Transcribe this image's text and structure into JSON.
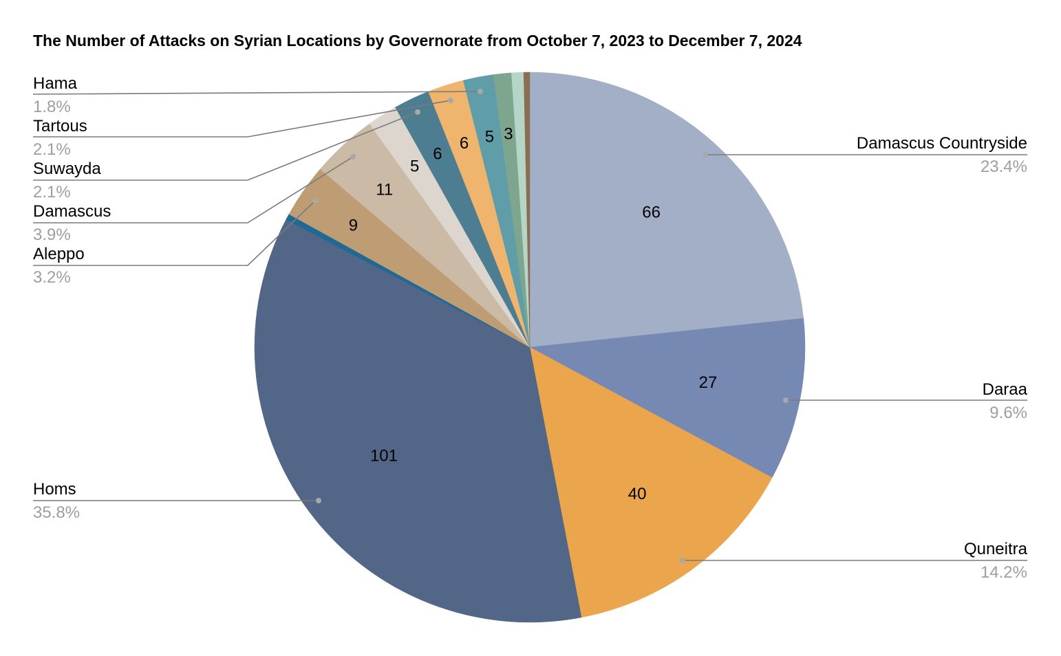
{
  "title": "The Number of Attacks on Syrian Locations by Governorate from October 7, 2023 to December 7, 2024",
  "chart_data": {
    "type": "pie",
    "title": "The Number of Attacks on Syrian Locations by Governorate from October 7, 2023 to December 7, 2024",
    "start_angle_deg": 0,
    "direction": "clockwise",
    "slices": [
      {
        "label": "Damascus Countryside",
        "value": 66,
        "percent": "23.4%",
        "color": "#a3afc7",
        "legend_side": "right",
        "show_value": "66"
      },
      {
        "label": "Daraa",
        "value": 27,
        "percent": "9.6%",
        "color": "#7589b2",
        "legend_side": "right",
        "show_value": "27"
      },
      {
        "label": "Quneitra",
        "value": 40,
        "percent": "14.2%",
        "color": "#eba54c",
        "legend_side": "right",
        "show_value": "40"
      },
      {
        "label": "Homs",
        "value": 101,
        "percent": "35.8%",
        "color": "#526688",
        "legend_side": "left",
        "show_value": "101"
      },
      {
        "label": "",
        "value": 1,
        "percent": "",
        "color": "#1e6a94",
        "show_value": ""
      },
      {
        "label": "Aleppo",
        "value": 9,
        "percent": "3.2%",
        "color": "#bf9d74",
        "legend_side": "left",
        "show_value": "9"
      },
      {
        "label": "Damascus",
        "value": 11,
        "percent": "3.9%",
        "color": "#cbbba6",
        "legend_side": "left",
        "show_value": "11"
      },
      {
        "label": "",
        "value": 5,
        "percent": "",
        "color": "#ddd6cf",
        "show_value": "5"
      },
      {
        "label": "Suwayda",
        "value": 6,
        "percent": "2.1%",
        "color": "#4d7d91",
        "legend_side": "left",
        "show_value": "6"
      },
      {
        "label": "Tartous",
        "value": 6,
        "percent": "2.1%",
        "color": "#efb46e",
        "legend_side": "left",
        "show_value": "6"
      },
      {
        "label": "Hama",
        "value": 5,
        "percent": "1.8%",
        "color": "#5f9ea9",
        "legend_side": "left",
        "show_value": "5"
      },
      {
        "label": "",
        "value": 3,
        "percent": "",
        "color": "#7ea58e",
        "show_value": "3"
      },
      {
        "label": "",
        "value": 2,
        "percent": "",
        "color": "#b5d6c6",
        "show_value": ""
      },
      {
        "label": "",
        "value": 1,
        "percent": "",
        "color": "#8b6e52",
        "show_value": ""
      }
    ],
    "legend_position": "callouts"
  },
  "legend": {
    "left": [
      {
        "label": "Hama",
        "percent": "1.8%"
      },
      {
        "label": "Tartous",
        "percent": "2.1%"
      },
      {
        "label": "Suwayda",
        "percent": "2.1%"
      },
      {
        "label": "Damascus",
        "percent": "3.9%"
      },
      {
        "label": "Aleppo",
        "percent": "3.2%"
      },
      {
        "label": "Homs",
        "percent": "35.8%"
      }
    ],
    "right": [
      {
        "label": "Damascus Countryside",
        "percent": "23.4%"
      },
      {
        "label": "Daraa",
        "percent": "9.6%"
      },
      {
        "label": "Quneitra",
        "percent": "14.2%"
      }
    ]
  }
}
